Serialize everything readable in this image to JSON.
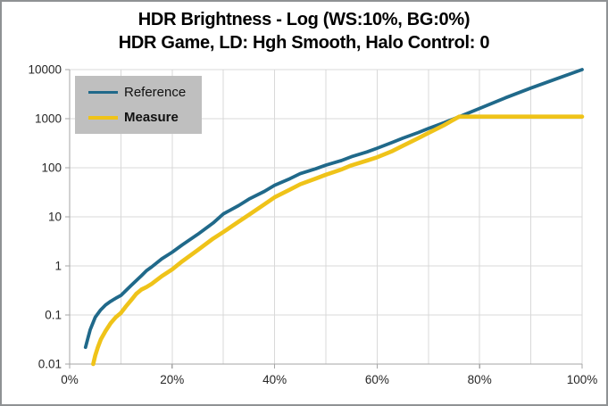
{
  "window": {
    "background": "#ffffff",
    "border_color": "#8f9294"
  },
  "chart_data": {
    "type": "line",
    "title": "HDR Brightness - Log (WS:10%, BG:0%)",
    "subtitle": "HDR Game, LD: Hgh Smooth, Halo Control: 0",
    "grid": true,
    "colors": {
      "gridline": "#d9d9d9",
      "axis": "#a6a6a6",
      "tick_text": "#262626",
      "legend_background": "#bfbfbf"
    },
    "x_axis": {
      "scale": "linear",
      "min": 0,
      "max": 100,
      "unit": "%",
      "gridline_step": 10,
      "tick_values": [
        0,
        20,
        40,
        60,
        80,
        100
      ],
      "tick_labels": [
        "0%",
        "20%",
        "40%",
        "60%",
        "80%",
        "100%"
      ]
    },
    "y_axis": {
      "scale": "log",
      "min": 0.01,
      "max": 10000,
      "tick_values": [
        10000,
        1000,
        100,
        10,
        1,
        0.1,
        0.01
      ],
      "tick_labels": [
        "10000",
        "1000",
        "100",
        "10",
        "1",
        "0.1",
        "0.01"
      ]
    },
    "legend": {
      "position": "top-left"
    },
    "series": [
      {
        "name": "Reference",
        "color": "#20698a",
        "points": [
          [
            3.1,
            0.022
          ],
          [
            3.6,
            0.035
          ],
          [
            4,
            0.05
          ],
          [
            5,
            0.09
          ],
          [
            6,
            0.125
          ],
          [
            7,
            0.16
          ],
          [
            8,
            0.19
          ],
          [
            9,
            0.22
          ],
          [
            10,
            0.25
          ],
          [
            12,
            0.4
          ],
          [
            14,
            0.63
          ],
          [
            15,
            0.8
          ],
          [
            16,
            0.95
          ],
          [
            18,
            1.4
          ],
          [
            20,
            1.9
          ],
          [
            22,
            2.7
          ],
          [
            25,
            4.4
          ],
          [
            28,
            7.5
          ],
          [
            30,
            11.5
          ],
          [
            33,
            17
          ],
          [
            35,
            23
          ],
          [
            38,
            33
          ],
          [
            40,
            44
          ],
          [
            43,
            60
          ],
          [
            45,
            76
          ],
          [
            48,
            95
          ],
          [
            50,
            113
          ],
          [
            53,
            140
          ],
          [
            55,
            168
          ],
          [
            58,
            210
          ],
          [
            60,
            250
          ],
          [
            63,
            330
          ],
          [
            65,
            400
          ],
          [
            68,
            520
          ],
          [
            70,
            630
          ],
          [
            73,
            820
          ],
          [
            76,
            1090
          ],
          [
            80,
            1620
          ],
          [
            85,
            2650
          ],
          [
            90,
            4200
          ],
          [
            95,
            6500
          ],
          [
            100,
            10000
          ]
        ]
      },
      {
        "name": "Measure",
        "color": "#efc319",
        "points": [
          [
            4.6,
            0.01
          ],
          [
            5,
            0.015
          ],
          [
            5.5,
            0.022
          ],
          [
            6.1,
            0.032
          ],
          [
            7,
            0.047
          ],
          [
            8,
            0.068
          ],
          [
            9,
            0.09
          ],
          [
            10,
            0.11
          ],
          [
            11,
            0.15
          ],
          [
            12,
            0.2
          ],
          [
            13,
            0.27
          ],
          [
            14,
            0.33
          ],
          [
            15,
            0.37
          ],
          [
            16,
            0.43
          ],
          [
            18,
            0.62
          ],
          [
            20,
            0.85
          ],
          [
            22,
            1.25
          ],
          [
            25,
            2.1
          ],
          [
            28,
            3.6
          ],
          [
            30,
            4.9
          ],
          [
            33,
            8
          ],
          [
            35,
            11
          ],
          [
            38,
            18
          ],
          [
            40,
            25
          ],
          [
            43,
            36
          ],
          [
            45,
            46
          ],
          [
            48,
            60
          ],
          [
            50,
            72
          ],
          [
            53,
            92
          ],
          [
            55,
            112
          ],
          [
            58,
            140
          ],
          [
            60,
            163
          ],
          [
            63,
            220
          ],
          [
            65,
            280
          ],
          [
            68,
            400
          ],
          [
            70,
            510
          ],
          [
            73,
            730
          ],
          [
            76,
            1100
          ],
          [
            80,
            1100
          ],
          [
            90,
            1100
          ],
          [
            100,
            1100
          ]
        ]
      }
    ]
  }
}
